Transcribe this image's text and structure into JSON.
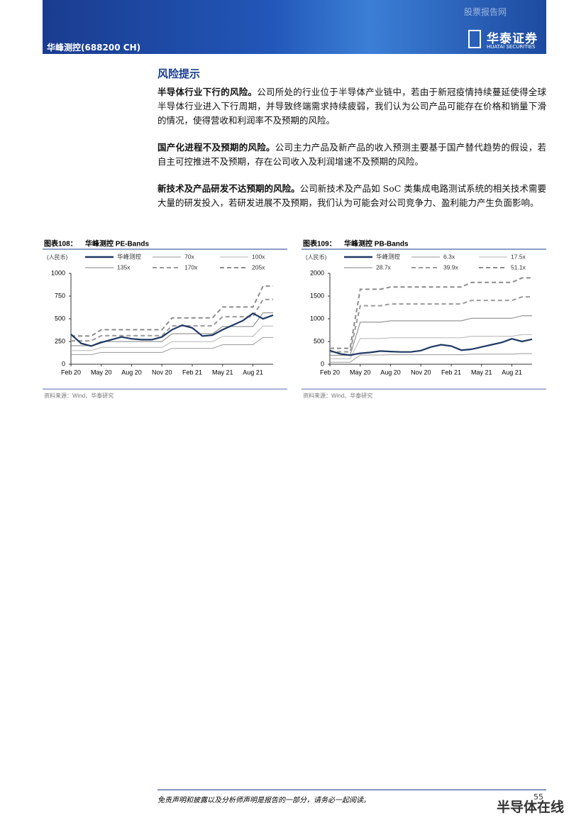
{
  "header": {
    "company": "华峰测控(688200 CH)",
    "watermark": "股票报告网",
    "logo": "华泰证券",
    "logo_en": "HUATAI SECURITIES"
  },
  "section": {
    "title": "风险提示",
    "paragraphs": [
      {
        "lead": "半导体行业下行的风险。",
        "text": "公司所处的行业位于半导体产业链中，若由于新冠疫情持续蔓延使得全球半导体行业进入下行周期，并导致终端需求持续疲弱，我们认为公司产品可能存在价格和销量下滑的情况，使得营收和利润率不及预期的风险。"
      },
      {
        "lead": "国产化进程不及预期的风险。",
        "text": "公司主力产品及新产品的收入预测主要基于国产替代趋势的假设，若自主可控推进不及预期，存在公司收入及利润增速不及预期的风险。"
      },
      {
        "lead": "新技术及产品研发不达预期的风险。",
        "text": "公司新技术及产品如 SoC 类集成电路测试系统的相关技术需要大量的研发投入，若研发进展不及预期，我们认为可能会对公司竞争力、盈利能力产生负面影响。"
      }
    ]
  },
  "chart_data": [
    {
      "type": "line",
      "figure_label": "图表108：",
      "title": "华峰测控 PE-Bands",
      "y_label": "(人民币)",
      "source": "资料来源：Wind、华泰研究",
      "categories": [
        "Feb 20",
        null,
        null,
        "May 20",
        null,
        null,
        "Aug 20",
        null,
        null,
        "Nov 20",
        null,
        null,
        "Feb 21",
        null,
        null,
        "May 21",
        null,
        null,
        "Aug 21",
        null,
        null
      ],
      "ylim": [
        0,
        1000
      ],
      "yticks": [
        0,
        250,
        500,
        750,
        1000
      ],
      "series": [
        {
          "name": "华峰测控",
          "color": "#1f3864",
          "style": "solid",
          "values": [
            330,
            230,
            200,
            240,
            270,
            300,
            280,
            270,
            270,
            300,
            380,
            430,
            400,
            310,
            320,
            380,
            430,
            480,
            560,
            500,
            540
          ]
        },
        {
          "name": "70x",
          "color": "#9a9a9a",
          "style": "solid",
          "values": [
            106,
            106,
            106,
            130,
            130,
            130,
            130,
            130,
            130,
            130,
            174,
            174,
            174,
            174,
            174,
            215,
            215,
            215,
            215,
            294,
            294
          ]
        },
        {
          "name": "100x",
          "color": "#b5b5b5",
          "style": "solid",
          "values": [
            151,
            151,
            151,
            185,
            185,
            185,
            185,
            185,
            185,
            185,
            249,
            249,
            249,
            249,
            249,
            307,
            307,
            307,
            307,
            420,
            420
          ]
        },
        {
          "name": "135x",
          "color": "#7f7f7f",
          "style": "solid",
          "values": [
            204,
            204,
            204,
            250,
            250,
            250,
            250,
            250,
            250,
            250,
            336,
            336,
            336,
            336,
            336,
            415,
            415,
            415,
            415,
            566,
            566
          ]
        },
        {
          "name": "170x",
          "color": "#9a9a9a",
          "style": "dashed",
          "values": [
            257,
            257,
            257,
            315,
            315,
            315,
            315,
            315,
            315,
            315,
            423,
            423,
            423,
            423,
            423,
            523,
            523,
            523,
            523,
            713,
            713
          ]
        },
        {
          "name": "205x",
          "color": "#8c8c8c",
          "style": "dashed",
          "values": [
            310,
            310,
            310,
            380,
            380,
            380,
            380,
            380,
            380,
            380,
            510,
            510,
            510,
            510,
            510,
            630,
            630,
            630,
            630,
            860,
            860
          ]
        }
      ]
    },
    {
      "type": "line",
      "figure_label": "图表109：",
      "title": "华峰测控 PB-Bands",
      "y_label": "(人民币)",
      "source": "资料来源：Wind、华泰研究",
      "categories": [
        "Feb 20",
        null,
        null,
        "May 20",
        null,
        null,
        "Aug 20",
        null,
        null,
        "Nov 20",
        null,
        null,
        "Feb 21",
        null,
        null,
        "May 21",
        null,
        null,
        "Aug 21",
        null,
        null
      ],
      "ylim": [
        0,
        2000
      ],
      "yticks": [
        0,
        500,
        1000,
        1500,
        2000
      ],
      "series": [
        {
          "name": "华峰测控",
          "color": "#1f3864",
          "style": "solid",
          "values": [
            300,
            230,
            200,
            240,
            260,
            290,
            280,
            270,
            270,
            300,
            380,
            430,
            400,
            310,
            330,
            380,
            430,
            480,
            560,
            500,
            550
          ]
        },
        {
          "name": "6.3x",
          "color": "#9a9a9a",
          "style": "solid",
          "values": [
            43,
            43,
            43,
            203,
            203,
            203,
            210,
            210,
            210,
            210,
            210,
            210,
            210,
            210,
            222,
            222,
            222,
            222,
            222,
            234,
            234
          ]
        },
        {
          "name": "17.5x",
          "color": "#b5b5b5",
          "style": "solid",
          "values": [
            120,
            120,
            120,
            565,
            565,
            565,
            582,
            582,
            582,
            582,
            582,
            582,
            582,
            582,
            616,
            616,
            616,
            616,
            616,
            651,
            651
          ]
        },
        {
          "name": "28.7x",
          "color": "#7f7f7f",
          "style": "solid",
          "values": [
            197,
            197,
            197,
            927,
            927,
            927,
            955,
            955,
            955,
            955,
            955,
            955,
            955,
            955,
            1011,
            1011,
            1011,
            1011,
            1011,
            1067,
            1067
          ]
        },
        {
          "name": "39.9x",
          "color": "#9a9a9a",
          "style": "dashed",
          "values": [
            273,
            273,
            273,
            1288,
            1288,
            1288,
            1327,
            1327,
            1327,
            1327,
            1327,
            1327,
            1327,
            1327,
            1405,
            1405,
            1405,
            1405,
            1405,
            1483,
            1483
          ]
        },
        {
          "name": "51.1x",
          "color": "#8c8c8c",
          "style": "dashed",
          "values": [
            350,
            350,
            350,
            1650,
            1650,
            1650,
            1700,
            1700,
            1700,
            1700,
            1700,
            1700,
            1700,
            1700,
            1800,
            1800,
            1800,
            1800,
            1800,
            1900,
            1900
          ]
        }
      ]
    }
  ],
  "footer": {
    "disclaimer": "免责声明和披露以及分析师声明是报告的一部分，请务必一起阅读。",
    "page": "55",
    "watermark": "半导体在线"
  }
}
